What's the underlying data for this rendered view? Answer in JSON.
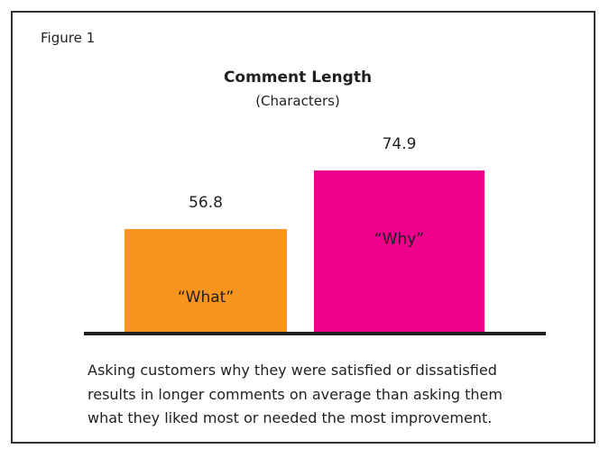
{
  "figure_label": "Figure 1",
  "chart_data": {
    "type": "bar",
    "title": "Comment Length",
    "subtitle": "(Characters)",
    "categories": [
      "“What”",
      "“Why”"
    ],
    "values": [
      56.8,
      74.9
    ],
    "value_labels": [
      "56.8",
      "74.9"
    ],
    "colors": [
      "#F7941E",
      "#EC008C"
    ],
    "xlabel": "",
    "ylabel": "",
    "ylim": [
      24.5,
      100
    ],
    "grid": false,
    "legend": "none"
  },
  "caption": [
    "Asking customers why they were satisfied or dissatisfied",
    "results in longer comments on average than asking them",
    "what they liked most or needed the most improvement."
  ]
}
